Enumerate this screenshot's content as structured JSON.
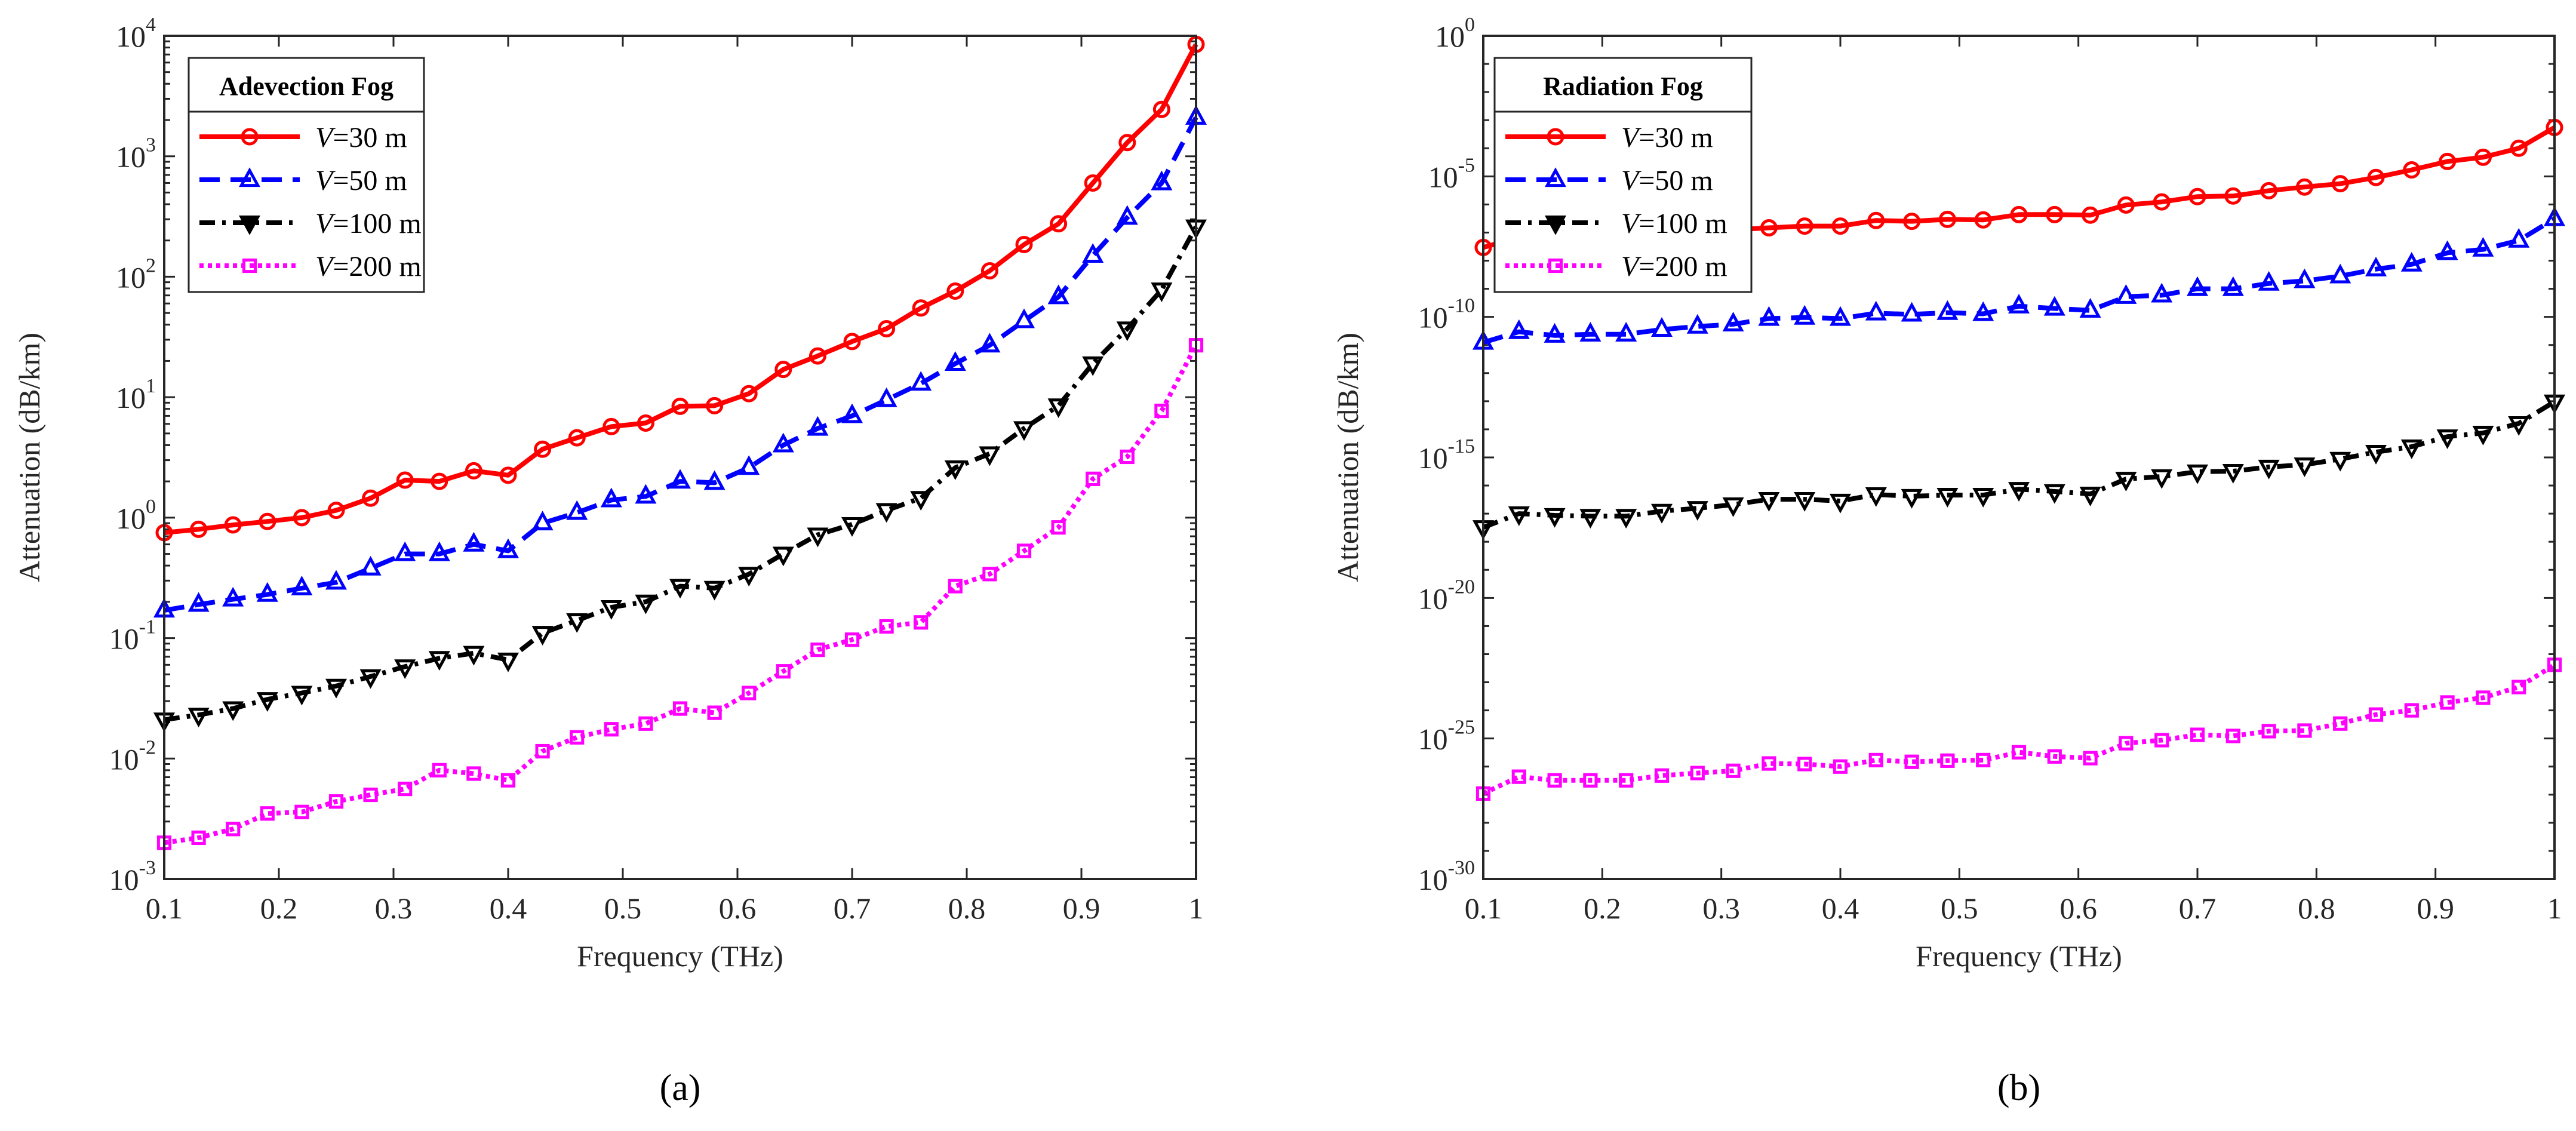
{
  "chart_data": [
    {
      "type": "line",
      "panel_label": "(a)",
      "legend_title": "Adevection Fog",
      "legend_placement": "top-left",
      "xlabel": "Frequency (THz)",
      "ylabel": "Attenuation (dB/km)",
      "xlim": [
        0.1,
        1
      ],
      "xticks": [
        "0.1",
        "0.2",
        "0.3",
        "0.4",
        "0.5",
        "0.6",
        "0.7",
        "0.8",
        "0.9",
        "1"
      ],
      "yscale": "log",
      "ylim_log10": [
        -3,
        4
      ],
      "ytick_exponents": [
        "-3",
        "-2",
        "-1",
        "0",
        "1",
        "2",
        "3",
        "4"
      ],
      "ytick_base": "10",
      "minor_ticks": "per-decade",
      "x": [
        0.1,
        0.13,
        0.16,
        0.19,
        0.22,
        0.25,
        0.28,
        0.31,
        0.34,
        0.37,
        0.4,
        0.43,
        0.46,
        0.49,
        0.52,
        0.55,
        0.58,
        0.61,
        0.64,
        0.67,
        0.7,
        0.73,
        0.76,
        0.79,
        0.82,
        0.85,
        0.88,
        0.91,
        0.94,
        0.97,
        1.0
      ],
      "series": [
        {
          "var": "V",
          "suffix": "=30 m",
          "color": "#ff0000",
          "marker": "circle",
          "dash": "solid",
          "values": [
            0.75,
            0.8,
            0.87,
            0.93,
            1.0,
            1.15,
            1.45,
            2.05,
            2.0,
            2.45,
            2.25,
            3.7,
            4.6,
            5.7,
            6.1,
            8.4,
            8.5,
            10.7,
            17,
            22,
            29,
            37,
            55,
            76,
            112,
            185,
            275,
            600,
            1300,
            2450,
            8500
          ]
        },
        {
          "var": "V",
          "suffix": "=50 m",
          "color": "#0000ff",
          "marker": "triangle-up",
          "dash": "dashed",
          "values": [
            0.17,
            0.19,
            0.21,
            0.23,
            0.26,
            0.29,
            0.38,
            0.5,
            0.5,
            0.6,
            0.53,
            0.9,
            1.1,
            1.4,
            1.5,
            2.0,
            1.95,
            2.6,
            4.0,
            5.5,
            7,
            9.5,
            13,
            19,
            27,
            43,
            68,
            150,
            310,
            600,
            2100
          ]
        },
        {
          "var": "V",
          "suffix": "=100 m",
          "color": "#000000",
          "marker": "triangle-down",
          "dash": "dashdot",
          "values": [
            0.021,
            0.023,
            0.026,
            0.031,
            0.035,
            0.04,
            0.048,
            0.058,
            0.068,
            0.075,
            0.066,
            0.11,
            0.14,
            0.18,
            0.2,
            0.27,
            0.26,
            0.34,
            0.5,
            0.72,
            0.88,
            1.15,
            1.45,
            2.6,
            3.4,
            5.5,
            8.5,
            19,
            37,
            78,
            260
          ]
        },
        {
          "var": "V",
          "suffix": "=200 m",
          "color": "#ff00ff",
          "marker": "square",
          "dash": "dotted",
          "values": [
            0.002,
            0.0022,
            0.0026,
            0.0035,
            0.0036,
            0.0044,
            0.005,
            0.0056,
            0.008,
            0.0075,
            0.0066,
            0.0115,
            0.015,
            0.0175,
            0.0195,
            0.026,
            0.024,
            0.035,
            0.053,
            0.08,
            0.097,
            0.125,
            0.135,
            0.27,
            0.34,
            0.53,
            0.83,
            2.1,
            3.2,
            7.7,
            27
          ]
        }
      ]
    },
    {
      "type": "line",
      "panel_label": "(b)",
      "legend_title": "Radiation Fog",
      "legend_placement": "top-left",
      "xlabel": "Frequency (THz)",
      "ylabel": "Attenuation (dB/km)",
      "xlim": [
        0.1,
        1
      ],
      "xticks": [
        "0.1",
        "0.2",
        "0.3",
        "0.4",
        "0.5",
        "0.6",
        "0.7",
        "0.8",
        "0.9",
        "1"
      ],
      "yscale": "log",
      "ylim_log10": [
        -30,
        0
      ],
      "ytick_exponents": [
        "-30",
        "-25",
        "-20",
        "-15",
        "-10",
        "-5",
        "0"
      ],
      "ytick_base": "10",
      "minor_ticks": "per-decade",
      "x": [
        0.1,
        0.13,
        0.16,
        0.19,
        0.22,
        0.25,
        0.28,
        0.31,
        0.34,
        0.37,
        0.4,
        0.43,
        0.46,
        0.49,
        0.52,
        0.55,
        0.58,
        0.61,
        0.64,
        0.67,
        0.7,
        0.73,
        0.76,
        0.79,
        0.82,
        0.85,
        0.88,
        0.91,
        0.94,
        0.97,
        1.0
      ],
      "series": [
        {
          "var": "V",
          "suffix": "=30 m",
          "color": "#ff0000",
          "marker": "circle",
          "dash": "solid",
          "values_log10": [
            -7.53,
            -7.17,
            -7.3,
            -7.25,
            -7.2,
            -7.05,
            -6.95,
            -6.9,
            -6.83,
            -6.77,
            -6.77,
            -6.57,
            -6.6,
            -6.53,
            -6.55,
            -6.36,
            -6.36,
            -6.38,
            -6.02,
            -5.91,
            -5.72,
            -5.7,
            -5.51,
            -5.38,
            -5.26,
            -5.04,
            -4.77,
            -4.47,
            -4.32,
            -4.0,
            -3.26
          ]
        },
        {
          "var": "V",
          "suffix": "=50 m",
          "color": "#0000ff",
          "marker": "triangle-up",
          "dash": "dashed",
          "values_log10": [
            -10.91,
            -10.53,
            -10.66,
            -10.62,
            -10.62,
            -10.45,
            -10.34,
            -10.26,
            -10.06,
            -10.02,
            -10.06,
            -9.87,
            -9.91,
            -9.85,
            -9.89,
            -9.62,
            -9.7,
            -9.77,
            -9.28,
            -9.23,
            -9.0,
            -9.0,
            -8.81,
            -8.72,
            -8.55,
            -8.3,
            -8.13,
            -7.72,
            -7.6,
            -7.28,
            -6.51
          ]
        },
        {
          "var": "V",
          "suffix": "=100 m",
          "color": "#000000",
          "marker": "triangle-down",
          "dash": "dashdot",
          "values_log10": [
            -17.49,
            -17.0,
            -17.06,
            -17.09,
            -17.09,
            -16.91,
            -16.81,
            -16.68,
            -16.49,
            -16.49,
            -16.55,
            -16.32,
            -16.38,
            -16.34,
            -16.34,
            -16.13,
            -16.21,
            -16.3,
            -15.77,
            -15.68,
            -15.51,
            -15.49,
            -15.34,
            -15.26,
            -15.06,
            -14.81,
            -14.62,
            -14.26,
            -14.13,
            -13.79,
            -13.02
          ]
        },
        {
          "var": "V",
          "suffix": "=200 m",
          "color": "#ff00ff",
          "marker": "square",
          "dash": "dotted",
          "values_log10": [
            -26.96,
            -26.36,
            -26.49,
            -26.49,
            -26.49,
            -26.32,
            -26.23,
            -26.15,
            -25.89,
            -25.91,
            -26.0,
            -25.77,
            -25.83,
            -25.79,
            -25.77,
            -25.49,
            -25.64,
            -25.7,
            -25.17,
            -25.06,
            -24.87,
            -24.91,
            -24.74,
            -24.72,
            -24.47,
            -24.15,
            -24.0,
            -23.72,
            -23.55,
            -23.17,
            -22.38
          ]
        }
      ]
    }
  ]
}
